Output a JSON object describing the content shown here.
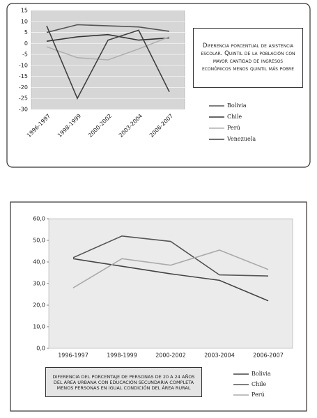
{
  "chart_data": [
    {
      "type": "line",
      "text": "Diferencia porcentual de asistencia escolar. Quintil de la población con mayor cantidad de ingresos económicos menos quintil más pobre",
      "categories": [
        "1996-1997",
        "1998-1999",
        "2000-2002",
        "2003-2004",
        "2006-2007"
      ],
      "series": [
        {
          "name": "Bolivia",
          "color": "#555555",
          "values": [
            5,
            8.5,
            8,
            7.5,
            5.5
          ]
        },
        {
          "name": "Chile",
          "color": "#333333",
          "values": [
            1,
            3,
            4,
            1.5,
            2.5
          ]
        },
        {
          "name": "Perú",
          "color": "#b0b0b0",
          "values": [
            -1.5,
            -6.5,
            -7.5,
            -2.5,
            3
          ]
        },
        {
          "name": "Venezuela",
          "color": "#404040",
          "values": [
            8,
            -25,
            1.5,
            6,
            -22
          ]
        }
      ],
      "ylim": [
        -30,
        15
      ],
      "yticks": [
        -30,
        -25,
        -20,
        -15,
        -10,
        -5,
        0,
        5,
        10,
        15
      ],
      "grid": true
    },
    {
      "type": "line",
      "text": "Diferencia del porcentaje de personas de 20 a 24 años del área urbana con educación secundaria completa menos personas en igual condición del área rural",
      "categories": [
        "1996-1997",
        "1998-1999",
        "2000-2002",
        "2003-2004",
        "2006-2007"
      ],
      "series": [
        {
          "name": "Bolivia",
          "color": "#444444",
          "values": [
            41.5,
            38,
            34.5,
            31.5,
            22
          ]
        },
        {
          "name": "Chile",
          "color": "#555555",
          "values": [
            42,
            52,
            49.5,
            34,
            33.5
          ]
        },
        {
          "name": "Perú",
          "color": "#aaaaaa",
          "values": [
            28,
            41.5,
            38.5,
            45.5,
            36.5
          ]
        }
      ],
      "ylim": [
        0,
        60
      ],
      "yticks": [
        {
          "value": 0,
          "label": "0,0"
        },
        {
          "value": 10,
          "label": "10,0"
        },
        {
          "value": 20,
          "label": "20,0"
        },
        {
          "value": 30,
          "label": "30,0"
        },
        {
          "value": 40,
          "label": "40,0"
        },
        {
          "value": 50,
          "label": "50,0"
        },
        {
          "value": 60,
          "label": "60,0"
        }
      ],
      "grid": false
    }
  ]
}
